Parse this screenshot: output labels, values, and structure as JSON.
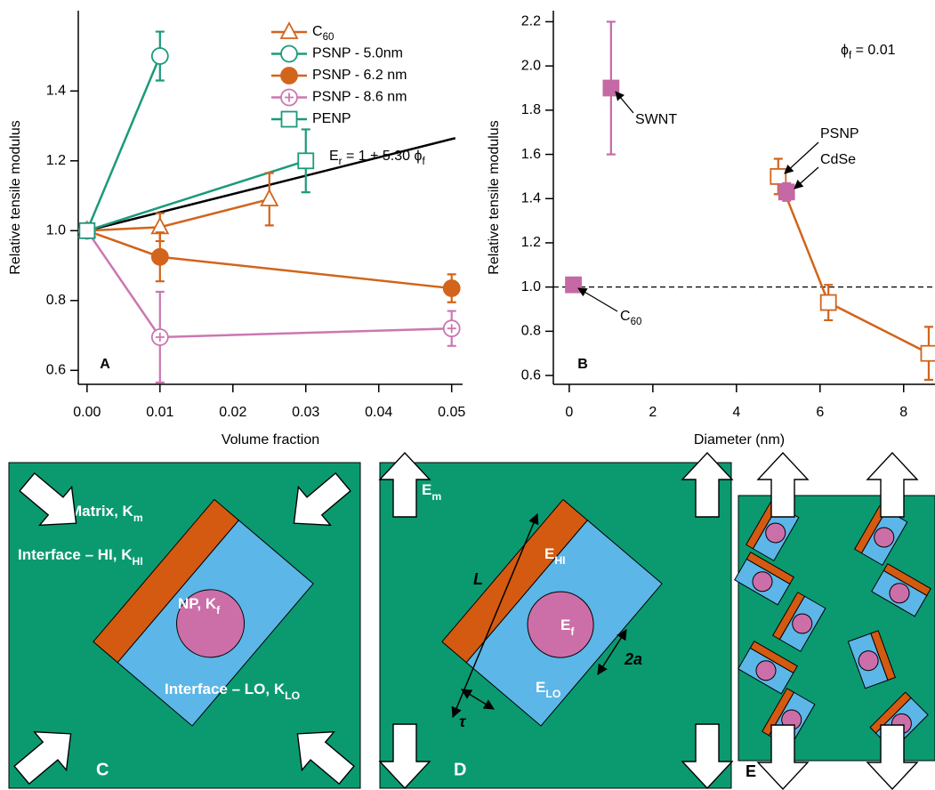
{
  "chart_data": [
    {
      "type": "line",
      "panel_label": "A",
      "x_label": "Volume fraction",
      "y_label": "Relative tensile modulus",
      "xlim": [
        -0.0012,
        0.0515
      ],
      "ylim": [
        0.56,
        1.63
      ],
      "xticks": [
        {
          "value": 0,
          "label": "0.00"
        },
        0.01,
        0.02,
        0.03,
        0.04,
        0.05
      ],
      "yticks": [
        0.6,
        0.8,
        {
          "value": 1,
          "label": "1.0"
        },
        1.2,
        1.4
      ],
      "legend": "upper right",
      "series": [
        {
          "name": [
            {
              "text": "C",
              "sub": "60"
            }
          ],
          "color": "#d2641c",
          "marker": "triangle",
          "filled": false,
          "x": [
            0,
            0.01,
            0.025
          ],
          "values": [
            1.0,
            1.01,
            1.09
          ],
          "errors": [
            0.02,
            0.04,
            0.075
          ]
        },
        {
          "name": "PSNP - 5.0nm",
          "color": "#1b9a7a",
          "marker": "circle",
          "filled": false,
          "x": [
            0,
            0.01
          ],
          "values": [
            1.0,
            1.5
          ],
          "errors": [
            0.02,
            0.07
          ]
        },
        {
          "name": "PSNP - 6.2 nm",
          "color": "#d2641c",
          "marker": "circle",
          "filled": true,
          "x": [
            0,
            0.01,
            0.05
          ],
          "values": [
            1.0,
            0.925,
            0.835
          ],
          "errors": [
            0.02,
            0.07,
            0.04
          ]
        },
        {
          "name": "PSNP - 8.6 nm",
          "color": "#cc77b0",
          "marker": "circle-plus",
          "filled": false,
          "x": [
            0,
            0.01,
            0.05
          ],
          "values": [
            1.0,
            0.695,
            0.72
          ],
          "errors": [
            0.02,
            0.13,
            0.05
          ]
        },
        {
          "name": "PENP",
          "color": "#1b9a7a",
          "marker": "square",
          "filled": false,
          "x": [
            0,
            0.03
          ],
          "values": [
            1.0,
            1.2
          ],
          "errors": [
            0.02,
            0.09
          ]
        }
      ],
      "fit": {
        "x": [
          0,
          0.0505
        ],
        "values": [
          1.0,
          1.265
        ],
        "color": "#000000",
        "label": [
          {
            "text": "E",
            "sub": "r"
          },
          {
            "text": " = 1 + 5.30 ϕ",
            "sub": "f"
          }
        ]
      }
    },
    {
      "type": "line",
      "panel_label": "B",
      "x_label": "Diameter (nm)",
      "y_label": "Relative tensile modulus",
      "xlim": [
        -0.38,
        8.75
      ],
      "ylim": [
        0.56,
        2.25
      ],
      "xticks": [
        0,
        2,
        4,
        6,
        8
      ],
      "yticks": [
        0.6,
        0.8,
        {
          "value": 1,
          "label": "1.0"
        },
        1.2,
        1.4,
        1.6,
        1.8,
        {
          "value": 2,
          "label": "2.0"
        },
        2.2
      ],
      "hline": 1,
      "series": [
        {
          "color": "#d2641c",
          "marker": "square",
          "filled": false,
          "connect": true,
          "x": [
            5.0,
            6.2,
            8.6
          ],
          "values": [
            1.5,
            0.93,
            0.7
          ],
          "errors": [
            0.08,
            0.08,
            0.12
          ]
        },
        {
          "color": "#c569a5",
          "marker": "square",
          "filled": true,
          "connect": false,
          "x": [
            0.1,
            1.0,
            5.2
          ],
          "values": [
            1.01,
            1.9,
            1.43
          ],
          "errors": [
            0.03,
            0.3,
            0.04
          ]
        }
      ],
      "annotations": [
        "SWNT",
        "PSNP",
        "CdSe",
        [
          {
            "text": "C",
            "sub": "60"
          }
        ],
        [
          {
            "text": "ϕ",
            "sub": "f"
          },
          {
            "text": " = 0.01"
          }
        ]
      ]
    }
  ],
  "diagrams": {
    "C": {
      "label": "C",
      "matrix": [
        {
          "text": "Matrix, "
        },
        {
          "text": "K",
          "sub": "m"
        }
      ],
      "interface_hi": [
        {
          "text": "Interface – HI, "
        },
        {
          "text": "K",
          "sub": "HI"
        }
      ],
      "np": [
        {
          "text": "NP, "
        },
        {
          "text": "K",
          "sub": "f"
        }
      ],
      "interface_lo": [
        {
          "text": "Interface – LO, "
        },
        {
          "text": "K",
          "sub": "LO"
        }
      ]
    },
    "D": {
      "label": "D",
      "matrix": [
        {
          "text": "E",
          "sub": "m"
        }
      ],
      "hi": [
        {
          "text": "E",
          "sub": "HI"
        }
      ],
      "length": "L",
      "np": [
        {
          "text": "E",
          "sub": "f"
        }
      ],
      "radius": "2a",
      "lo": [
        {
          "text": "E",
          "sub": "LO"
        }
      ],
      "thickness": "τ"
    },
    "E": {
      "label": "E"
    }
  }
}
